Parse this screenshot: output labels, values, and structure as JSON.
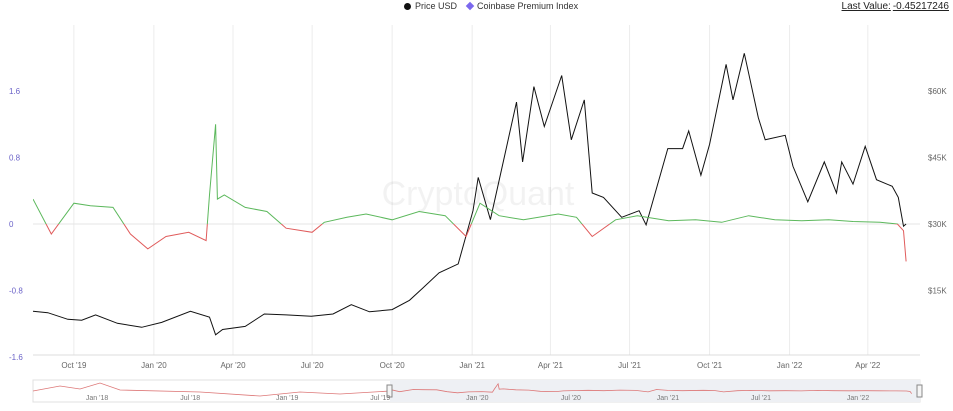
{
  "legend": {
    "price_label": "Price USD",
    "premium_label": "Coinbase Premium Index",
    "price_color": "#111111",
    "premium_color": "#7b68ee"
  },
  "last_value": {
    "label": "Last Value:",
    "value": "-0.45217246"
  },
  "watermark": "CryptoQuant",
  "chart_data": {
    "type": "line",
    "title": "",
    "xlabel": "",
    "ylabel": "",
    "x_range": [
      "2019-08-15",
      "2022-05-31"
    ],
    "x_ticks": [
      "Oct '19",
      "Jan '20",
      "Apr '20",
      "Jul '20",
      "Oct '20",
      "Jan '21",
      "Apr '21",
      "Jul '21",
      "Oct '21",
      "Jan '22",
      "Apr '22"
    ],
    "y_left": {
      "ticks": [
        1.6,
        0.8,
        0,
        -0.8,
        -1.6
      ],
      "tick_labels": [
        "1.6",
        "0.8",
        "0",
        "-0.8",
        "-1.6"
      ],
      "range": [
        -1.6,
        1.6
      ]
    },
    "y_right": {
      "ticks": [
        60000,
        45000,
        30000,
        15000
      ],
      "tick_labels": [
        "$60K",
        "$45K",
        "$30K",
        "$15K"
      ],
      "range": [
        0,
        60000
      ]
    },
    "positive_color": "#5cb85c",
    "negative_color": "#e05b5b",
    "series": [
      {
        "name": "Price USD",
        "axis": "right",
        "color": "#111111",
        "points": [
          [
            "2019-08-15",
            10300
          ],
          [
            "2019-09-01",
            10000
          ],
          [
            "2019-09-24",
            8500
          ],
          [
            "2019-10-10",
            8300
          ],
          [
            "2019-10-26",
            9500
          ],
          [
            "2019-11-20",
            7600
          ],
          [
            "2019-12-18",
            6700
          ],
          [
            "2020-01-10",
            7800
          ],
          [
            "2020-02-12",
            10300
          ],
          [
            "2020-03-05",
            9000
          ],
          [
            "2020-03-12",
            5000
          ],
          [
            "2020-03-20",
            6200
          ],
          [
            "2020-04-15",
            6900
          ],
          [
            "2020-05-07",
            9700
          ],
          [
            "2020-06-01",
            9500
          ],
          [
            "2020-06-30",
            9200
          ],
          [
            "2020-07-25",
            9700
          ],
          [
            "2020-08-15",
            11800
          ],
          [
            "2020-09-05",
            10200
          ],
          [
            "2020-10-01",
            10700
          ],
          [
            "2020-10-21",
            12800
          ],
          [
            "2020-11-05",
            15500
          ],
          [
            "2020-11-24",
            19000
          ],
          [
            "2020-12-16",
            21000
          ],
          [
            "2021-01-02",
            33000
          ],
          [
            "2021-01-08",
            40500
          ],
          [
            "2021-01-22",
            31000
          ],
          [
            "2021-02-08",
            46000
          ],
          [
            "2021-02-21",
            57500
          ],
          [
            "2021-02-28",
            44000
          ],
          [
            "2021-03-13",
            61000
          ],
          [
            "2021-03-25",
            52000
          ],
          [
            "2021-04-14",
            63500
          ],
          [
            "2021-04-25",
            49000
          ],
          [
            "2021-05-10",
            58000
          ],
          [
            "2021-05-19",
            37000
          ],
          [
            "2021-06-01",
            36000
          ],
          [
            "2021-06-22",
            31500
          ],
          [
            "2021-07-12",
            33000
          ],
          [
            "2021-07-20",
            29800
          ],
          [
            "2021-08-14",
            47000
          ],
          [
            "2021-08-31",
            47000
          ],
          [
            "2021-09-07",
            51000
          ],
          [
            "2021-09-21",
            41000
          ],
          [
            "2021-10-01",
            48000
          ],
          [
            "2021-10-20",
            66000
          ],
          [
            "2021-10-28",
            58000
          ],
          [
            "2021-11-10",
            68500
          ],
          [
            "2021-11-26",
            54000
          ],
          [
            "2021-12-04",
            49000
          ],
          [
            "2021-12-27",
            50000
          ],
          [
            "2022-01-05",
            43000
          ],
          [
            "2022-01-22",
            35000
          ],
          [
            "2022-02-10",
            44000
          ],
          [
            "2022-02-24",
            37000
          ],
          [
            "2022-03-02",
            44000
          ],
          [
            "2022-03-15",
            39000
          ],
          [
            "2022-03-29",
            47500
          ],
          [
            "2022-04-11",
            40000
          ],
          [
            "2022-04-29",
            38500
          ],
          [
            "2022-05-06",
            36000
          ],
          [
            "2022-05-12",
            29500
          ],
          [
            "2022-05-15",
            30000
          ]
        ]
      },
      {
        "name": "Coinbase Premium Index",
        "axis": "left",
        "color": "#7b68ee",
        "points": [
          [
            "2019-08-15",
            0.3
          ],
          [
            "2019-09-05",
            -0.12
          ],
          [
            "2019-10-01",
            0.25
          ],
          [
            "2019-10-20",
            0.22
          ],
          [
            "2019-11-15",
            0.2
          ],
          [
            "2019-12-05",
            -0.12
          ],
          [
            "2019-12-25",
            -0.3
          ],
          [
            "2020-01-15",
            -0.15
          ],
          [
            "2020-02-10",
            -0.1
          ],
          [
            "2020-03-01",
            -0.2
          ],
          [
            "2020-03-05",
            0.35
          ],
          [
            "2020-03-12",
            1.2
          ],
          [
            "2020-03-14",
            0.3
          ],
          [
            "2020-03-22",
            0.35
          ],
          [
            "2020-04-15",
            0.2
          ],
          [
            "2020-05-10",
            0.15
          ],
          [
            "2020-06-01",
            -0.05
          ],
          [
            "2020-07-01",
            -0.1
          ],
          [
            "2020-07-15",
            0.02
          ],
          [
            "2020-08-10",
            0.08
          ],
          [
            "2020-09-01",
            0.12
          ],
          [
            "2020-10-01",
            0.05
          ],
          [
            "2020-11-01",
            0.15
          ],
          [
            "2020-12-01",
            0.1
          ],
          [
            "2020-12-25",
            -0.15
          ],
          [
            "2021-01-10",
            0.25
          ],
          [
            "2021-02-01",
            0.1
          ],
          [
            "2021-03-01",
            0.05
          ],
          [
            "2021-04-10",
            0.12
          ],
          [
            "2021-05-01",
            0.08
          ],
          [
            "2021-05-19",
            -0.15
          ],
          [
            "2021-06-15",
            0.05
          ],
          [
            "2021-07-10",
            0.1
          ],
          [
            "2021-08-15",
            0.04
          ],
          [
            "2021-09-15",
            0.05
          ],
          [
            "2021-10-15",
            0.02
          ],
          [
            "2021-11-15",
            0.1
          ],
          [
            "2021-12-15",
            0.05
          ],
          [
            "2022-01-15",
            0.04
          ],
          [
            "2022-02-15",
            0.05
          ],
          [
            "2022-03-15",
            0.03
          ],
          [
            "2022-04-15",
            0.02
          ],
          [
            "2022-05-05",
            0.0
          ],
          [
            "2022-05-12",
            -0.08
          ],
          [
            "2022-05-15",
            -0.45
          ]
        ]
      }
    ],
    "grid": "vertical",
    "legend_position": "top-center"
  },
  "navigator": {
    "ticks": [
      "Jan '18",
      "Jul '18",
      "Jan '19",
      "Jul '19",
      "Jan '20",
      "Jul '20",
      "Jan '21",
      "Jul '21",
      "Jan '22"
    ]
  }
}
